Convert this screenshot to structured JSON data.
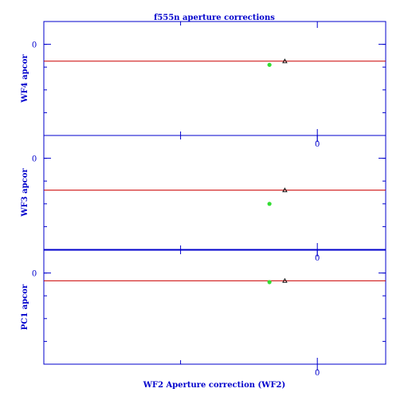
{
  "chart_data": {
    "type": "scatter",
    "title": "f555n aperture corrections",
    "xlabel": "WF2 Aperture correction (WF2)",
    "colors": {
      "axis": "#0000cc",
      "reference_line": "#cc0000",
      "series_green": "#33dd33",
      "series_triangle": "#000000"
    },
    "xlim": [
      -0.8,
      0.2
    ],
    "x_ticks": [
      {
        "value": 0,
        "label": "0"
      }
    ],
    "panels": [
      {
        "ylabel": "WF4 apcor",
        "ylim": [
          -0.2,
          0.05
        ],
        "y_ticks": [
          {
            "value": 0,
            "label": "0"
          }
        ],
        "reference_line_y": -0.037,
        "points_green": [
          {
            "x": -0.14,
            "y": -0.045
          }
        ],
        "points_triangle": [
          {
            "x": -0.095,
            "y": -0.037
          }
        ]
      },
      {
        "ylabel": "WF3 apcor",
        "ylim": [
          -0.2,
          0.05
        ],
        "y_ticks": [
          {
            "value": 0,
            "label": "0"
          }
        ],
        "reference_line_y": -0.07,
        "points_green": [
          {
            "x": -0.14,
            "y": -0.1
          }
        ],
        "points_triangle": [
          {
            "x": -0.095,
            "y": -0.07
          }
        ]
      },
      {
        "ylabel": "PC1 apcor",
        "ylim": [
          -0.2,
          0.05
        ],
        "y_ticks": [
          {
            "value": 0,
            "label": "0"
          }
        ],
        "reference_line_y": -0.017,
        "points_green": [
          {
            "x": -0.14,
            "y": -0.02
          }
        ],
        "points_triangle": [
          {
            "x": -0.095,
            "y": -0.017
          }
        ]
      }
    ]
  }
}
